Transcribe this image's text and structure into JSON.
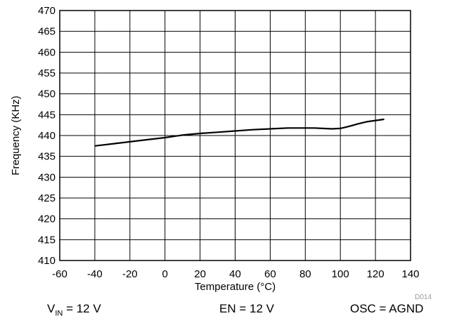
{
  "chart_data": {
    "type": "line",
    "title": "",
    "xlabel": "Temperature (°C)",
    "ylabel": "Frequency (KHz)",
    "xlim": [
      -60,
      140
    ],
    "ylim": [
      410,
      470
    ],
    "xticks": [
      "-60",
      "-40",
      "-20",
      "0",
      "20",
      "40",
      "60",
      "80",
      "100",
      "120",
      "140"
    ],
    "yticks": [
      "410",
      "415",
      "420",
      "425",
      "430",
      "435",
      "440",
      "445",
      "450",
      "455",
      "460",
      "465",
      "470"
    ],
    "grid": true,
    "legend": "none",
    "figure_id": "D014",
    "series": [
      {
        "color": "#000000",
        "x": [
          -40,
          -30,
          -20,
          -10,
          0,
          10,
          20,
          30,
          40,
          50,
          60,
          70,
          80,
          85,
          90,
          95,
          100,
          105,
          110,
          115,
          120,
          125
        ],
        "y": [
          437.5,
          438.0,
          438.5,
          439.0,
          439.5,
          440.1,
          440.5,
          440.8,
          441.1,
          441.4,
          441.6,
          441.8,
          441.8,
          441.8,
          441.7,
          441.6,
          441.7,
          442.2,
          442.8,
          443.3,
          443.6,
          443.9
        ]
      }
    ]
  },
  "conditions": {
    "vin_prefix": "V",
    "vin_sub": "IN",
    "vin_value": " = 12 V",
    "en": "EN = 12 V",
    "osc": "OSC = AGND"
  }
}
